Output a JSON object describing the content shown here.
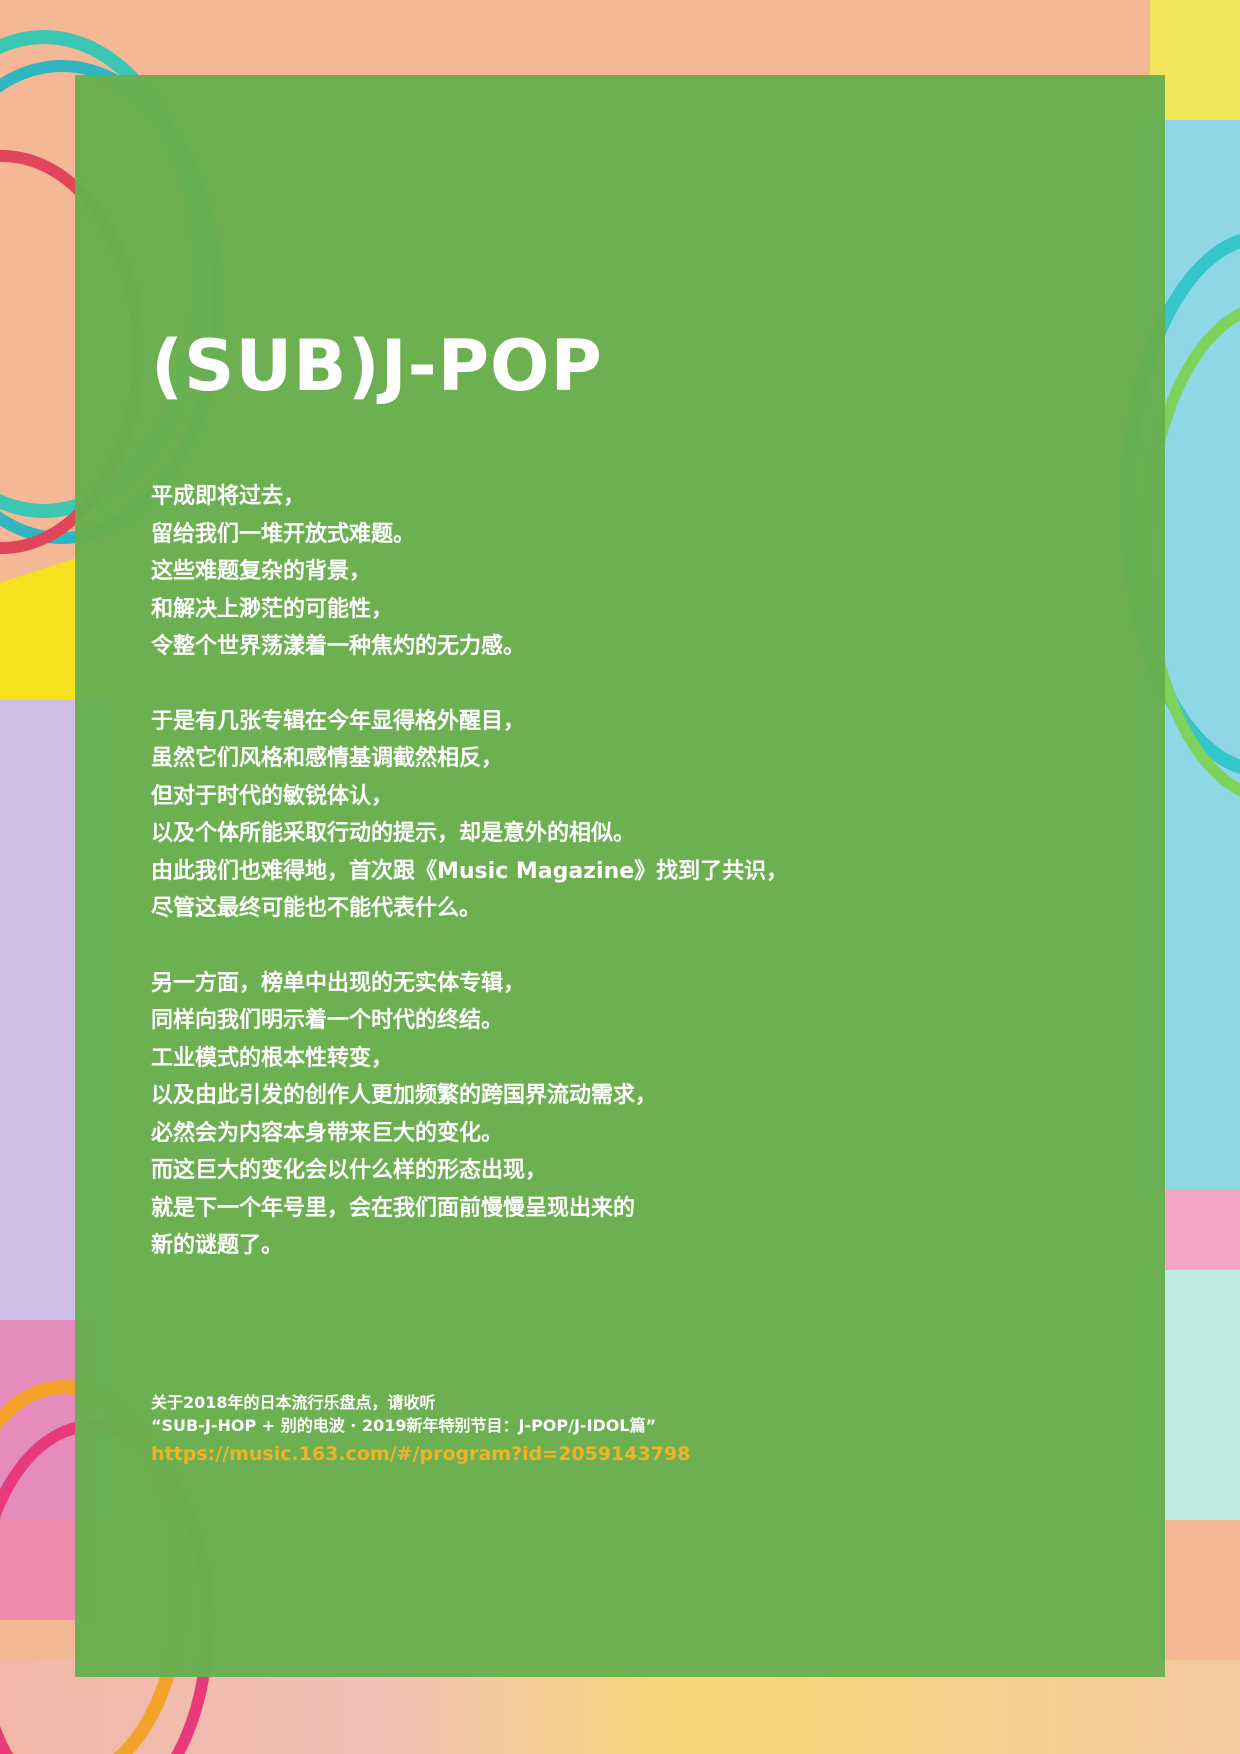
{
  "page": {
    "title": "(SUB)J-POP",
    "paragraphs": [
      {
        "lines": [
          "平成即将过去，",
          "留给我们一堆开放式难题。",
          "这些难题复杂的背景，",
          "和解决上渺茫的可能性，",
          "令整个世界荡漾着一种焦灼的无力感。"
        ]
      },
      {
        "lines": [
          "于是有几张专辑在今年显得格外醒目，",
          "虽然它们风格和感情基调截然相反，",
          "但对于时代的敏锐体认，",
          "以及个体所能采取行动的提示，却是意外的相似。",
          "由此我们也难得地，首次跟《Music Magazine》找到了共识，",
          "尽管这最终可能也不能代表什么。"
        ]
      },
      {
        "lines": [
          "另一方面，榜单中出现的无实体专辑，",
          "同样向我们明示着一个时代的终结。",
          "工业模式的根本性转变，",
          "以及由此引发的创作人更加频繁的跨国界流动需求，",
          "必然会为内容本身带来巨大的变化。",
          "而这巨大的变化会以什么样的形态出现，",
          "就是下一个年号里，会在我们面前慢慢呈现出来的",
          "新的谜题了。"
        ]
      }
    ],
    "note": {
      "line1": "关于2018年的日本流行乐盘点，请收听",
      "line2": "“SUB-J-HOP + 别的电波 · 2019新年特别节目：J-POP/J-IDOL篇”",
      "link": "https://music.163.com/#/program?id=2059143798"
    }
  },
  "colors": {
    "panel": "#68b04f",
    "text": "#ffffff",
    "link": "#f0b323",
    "background": "#f4b896"
  }
}
